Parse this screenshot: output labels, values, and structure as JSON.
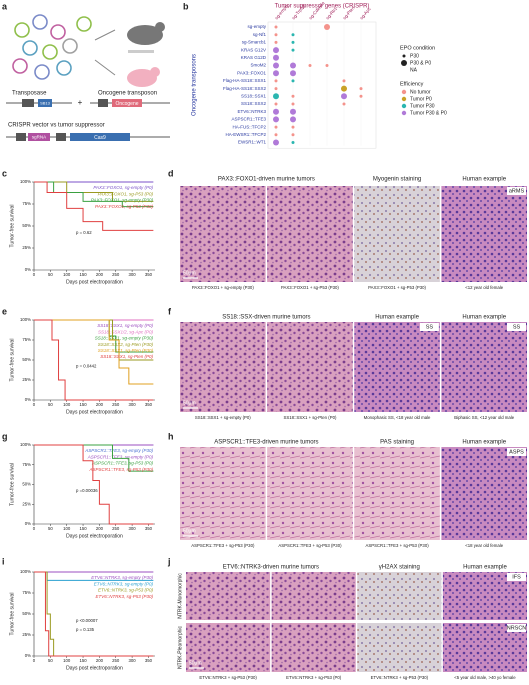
{
  "panel_labels": [
    "a",
    "b",
    "c",
    "d",
    "e",
    "f",
    "g",
    "h",
    "i",
    "j"
  ],
  "diagram_a": {
    "transposase": "Transposase",
    "oncogene_transposon": "Oncogene transposon",
    "crispr": "CRISPR vector vs tumor suppressor",
    "plus": "+",
    "parts": [
      "SB13",
      "Oncogene",
      "sgRNA",
      "Cas9"
    ]
  },
  "dotplot": {
    "title": "Tumor suppressor genes (CRISPR)",
    "ylabel": "Oncogene transposons",
    "columns": [
      "sg-empty",
      "sg-Trp53",
      "sg-Cdkn2a",
      "sg-Rb1",
      "sg-Pten",
      "sg-Apc"
    ],
    "rows": [
      {
        "label": "sg-empty",
        "cells": [
          {
            "epo": "P30",
            "eff": "No tumor"
          },
          null,
          null,
          {
            "epo": "P30 & P0",
            "eff": "No tumor"
          },
          null,
          null
        ]
      },
      {
        "label": "sg-Nf1",
        "cells": [
          {
            "epo": "P30",
            "eff": "No tumor"
          },
          {
            "epo": "P30",
            "eff": "Tumor P30"
          },
          null,
          null,
          null,
          null
        ]
      },
      {
        "label": "sg-Smarcb1",
        "cells": [
          {
            "epo": "P30",
            "eff": "No tumor"
          },
          {
            "epo": "P30",
            "eff": "Tumor P30"
          },
          null,
          null,
          null,
          null
        ]
      },
      {
        "label": "KRAS G12V",
        "cells": [
          {
            "epo": "P30 & P0",
            "eff": "Tumor P30 & P0"
          },
          {
            "epo": "P30",
            "eff": "Tumor P30"
          },
          null,
          null,
          null,
          null
        ]
      },
      {
        "label": "KRAS G12D",
        "cells": [
          {
            "epo": "P30 & P0",
            "eff": "Tumor P30 & P0"
          },
          null,
          null,
          null,
          null,
          null
        ]
      },
      {
        "label": "SmoM2",
        "cells": [
          {
            "epo": "P30 & P0",
            "eff": "Tumor P30 & P0"
          },
          {
            "epo": "P30 & P0",
            "eff": "Tumor P30 & P0"
          },
          {
            "epo": "P30",
            "eff": "No tumor"
          },
          {
            "epo": "P30",
            "eff": "No tumor"
          },
          null,
          null
        ]
      },
      {
        "label": "PAX3::FOXO1",
        "cells": [
          {
            "epo": "P30 & P0",
            "eff": "Tumor P30 & P0"
          },
          {
            "epo": "P30 & P0",
            "eff": "Tumor P30 & P0"
          },
          null,
          null,
          null,
          null
        ]
      },
      {
        "label": "Flag-HA-SS18::SSX1",
        "cells": [
          {
            "epo": "P30",
            "eff": "No tumor"
          },
          {
            "epo": "P30",
            "eff": "Tumor P30"
          },
          null,
          null,
          {
            "epo": "P30",
            "eff": "No tumor"
          },
          null
        ]
      },
      {
        "label": "Flag-HA-SS18::SSX2",
        "cells": [
          {
            "epo": "P30",
            "eff": "No tumor"
          },
          null,
          null,
          null,
          {
            "epo": "P30 & P0",
            "eff": "Tumor P0"
          },
          {
            "epo": "P30",
            "eff": "No tumor"
          }
        ]
      },
      {
        "label": "SS18::SSX1",
        "cells": [
          {
            "epo": "P30 & P0",
            "eff": "Tumor P30"
          },
          {
            "epo": "P30",
            "eff": "No tumor"
          },
          null,
          null,
          {
            "epo": "P30 & P0",
            "eff": "Tumor P30 & P0"
          },
          {
            "epo": "P30",
            "eff": "No tumor"
          }
        ]
      },
      {
        "label": "SS18::SSX2",
        "cells": [
          {
            "epo": "P30",
            "eff": "No tumor"
          },
          {
            "epo": "P30",
            "eff": "No tumor"
          },
          null,
          null,
          {
            "epo": "P30",
            "eff": "No tumor"
          },
          null
        ]
      },
      {
        "label": "ETV6::NTRK3",
        "cells": [
          {
            "epo": "P30 & P0",
            "eff": "Tumor P30 & P0"
          },
          {
            "epo": "P30 & P0",
            "eff": "Tumor P30 & P0"
          },
          null,
          null,
          null,
          null
        ]
      },
      {
        "label": "ASPSCR1::TFE3",
        "cells": [
          {
            "epo": "P30 & P0",
            "eff": "Tumor P30 & P0"
          },
          {
            "epo": "P30 & P0",
            "eff": "Tumor P30 & P0"
          },
          null,
          null,
          null,
          null
        ]
      },
      {
        "label": "HA-FUS::TFCP2",
        "cells": [
          {
            "epo": "P30",
            "eff": "No tumor"
          },
          {
            "epo": "P30",
            "eff": "No tumor"
          },
          null,
          null,
          null,
          null
        ]
      },
      {
        "label": "HA-EWSR1::TFCP2",
        "cells": [
          {
            "epo": "P30",
            "eff": "No tumor"
          },
          {
            "epo": "P30",
            "eff": "No tumor"
          },
          null,
          null,
          null,
          null
        ]
      },
      {
        "label": "EWSR1::WT1",
        "cells": [
          {
            "epo": "P30 & P0",
            "eff": "Tumor P30 & P0"
          },
          {
            "epo": "P30",
            "eff": "Tumor P30"
          },
          null,
          null,
          null,
          null
        ]
      }
    ],
    "epo_title": "EPO condition",
    "epo": [
      "P30",
      "P30 & P0",
      "NA"
    ],
    "eff_title": "Efficiency",
    "eff": [
      {
        "label": "No tumor",
        "color": "#f4938c"
      },
      {
        "label": "Tumor P0",
        "color": "#c9a227"
      },
      {
        "label": "Tumor P30",
        "color": "#2bb6b0"
      },
      {
        "label": "Tumor P30 & P0",
        "color": "#b07ad8"
      }
    ]
  },
  "chart_data": [
    {
      "type": "line",
      "ylabel": "Tumor-free survival",
      "xlabel": "Days post electroporation",
      "xlim": [
        0,
        370
      ],
      "ylim": [
        0,
        100
      ],
      "xticks": [
        0,
        50,
        100,
        150,
        200,
        250,
        300,
        350
      ],
      "yticks": [
        {
          "value": 0,
          "label": "0%"
        },
        {
          "value": 25,
          "label": "25%"
        },
        {
          "value": 50,
          "label": "50%"
        },
        {
          "value": 75,
          "label": "75%"
        },
        {
          "value": 100,
          "label": "100%"
        }
      ],
      "annotations": [
        "p = 0.62"
      ],
      "series": [
        {
          "name": "PAX3::FOXO1, sg-empty (P0)",
          "color": "#7b52c8",
          "x": [
            0,
            365
          ],
          "values": [
            100,
            100
          ]
        },
        {
          "name": "PAX3::FOXO1, sg-P53 (P0)",
          "color": "#9a9a20",
          "x": [
            0,
            100,
            100,
            240,
            240,
            365
          ],
          "values": [
            100,
            100,
            88,
            88,
            78,
            78
          ]
        },
        {
          "name": "PAX3::FOXO1, sg-empty (P30)",
          "color": "#3aa040",
          "x": [
            0,
            60,
            60,
            150,
            150,
            270,
            270,
            365
          ],
          "values": [
            100,
            100,
            88,
            88,
            78,
            78,
            72,
            72
          ]
        },
        {
          "name": "PAX3::FOXO1, sg-P53 (P30)",
          "color": "#e04040",
          "x": [
            0,
            40,
            40,
            100,
            100,
            150,
            150,
            210,
            210,
            365
          ],
          "values": [
            100,
            100,
            88,
            88,
            70,
            70,
            55,
            55,
            45,
            45
          ]
        }
      ]
    },
    {
      "type": "line",
      "ylabel": "Tumor-free survival",
      "xlabel": "Days post electroporation",
      "xlim": [
        0,
        370
      ],
      "ylim": [
        0,
        100
      ],
      "xticks": [
        0,
        50,
        100,
        150,
        200,
        250,
        300,
        350
      ],
      "yticks": [
        {
          "value": 0,
          "label": "0%"
        },
        {
          "value": 25,
          "label": "25%"
        },
        {
          "value": 50,
          "label": "50%"
        },
        {
          "value": 75,
          "label": "75%"
        },
        {
          "value": 100,
          "label": "100%"
        }
      ],
      "annotations": [
        "p = 0.0442"
      ],
      "series": [
        {
          "name": "SS18::SSX1, sg-empty (P0)",
          "color": "#9b4fc0",
          "x": [
            0,
            365
          ],
          "values": [
            100,
            100
          ]
        },
        {
          "name": "SS18::SSX1/2, sg-Apc (P0)",
          "color": "#e070c0",
          "x": [
            0,
            365
          ],
          "values": [
            100,
            100
          ]
        },
        {
          "name": "SS18::SSX1, sg-empty (P30)",
          "color": "#3aa040",
          "x": [
            0,
            230,
            230,
            250,
            250,
            365
          ],
          "values": [
            100,
            100,
            80,
            80,
            60,
            60
          ]
        },
        {
          "name": "SS18::SSX2, sg-Pten (P30)",
          "color": "#9a9a20",
          "x": [
            0,
            240,
            240,
            260,
            260,
            365
          ],
          "values": [
            100,
            100,
            75,
            75,
            50,
            50
          ]
        },
        {
          "name": "SS18::SSX1, sg-Pten (P30)",
          "color": "#e0a020",
          "x": [
            0,
            230,
            230,
            260,
            260,
            290,
            290,
            365
          ],
          "values": [
            100,
            100,
            75,
            75,
            40,
            40,
            20,
            20
          ]
        },
        {
          "name": "SS18::SSX1, sg-Pten (P0)",
          "color": "#e04040",
          "x": [
            0,
            55,
            55,
            75,
            75,
            95,
            95,
            365
          ],
          "values": [
            100,
            100,
            75,
            75,
            25,
            25,
            0,
            0
          ]
        }
      ]
    },
    {
      "type": "line",
      "ylabel": "Tumor-free survival",
      "xlabel": "Days post electroporation",
      "xlim": [
        0,
        370
      ],
      "ylim": [
        0,
        100
      ],
      "xticks": [
        0,
        50,
        100,
        150,
        200,
        250,
        300,
        350
      ],
      "yticks": [
        {
          "value": 0,
          "label": "0%"
        },
        {
          "value": 25,
          "label": "25%"
        },
        {
          "value": 50,
          "label": "50%"
        },
        {
          "value": 75,
          "label": "75%"
        },
        {
          "value": 100,
          "label": "100%"
        }
      ],
      "annotations": [
        "p =0.00036"
      ],
      "series": [
        {
          "name": "ASPSCR1::TFE3, sg-empty (P30)",
          "color": "#4a6fd0",
          "x": [
            0,
            365
          ],
          "values": [
            100,
            100
          ]
        },
        {
          "name": "ASPSCR1::TFE3, sg-empty (P0)",
          "color": "#9b4fc0",
          "x": [
            0,
            365
          ],
          "values": [
            100,
            100
          ]
        },
        {
          "name": "ASPSCR1::TFE3, sg-P53 (P0)",
          "color": "#3aa040",
          "x": [
            0,
            240,
            240,
            290,
            290,
            365
          ],
          "values": [
            100,
            100,
            83,
            83,
            67,
            67
          ]
        },
        {
          "name": "ASPSCR1::TFE3, sg-P53 (P30)",
          "color": "#e04040",
          "x": [
            0,
            150,
            150,
            180,
            180,
            200,
            200,
            230,
            230,
            365
          ],
          "values": [
            100,
            100,
            80,
            80,
            55,
            55,
            25,
            25,
            0,
            0
          ]
        }
      ]
    },
    {
      "type": "line",
      "ylabel": "Tumor-free survival",
      "xlabel": "Days post electroporation",
      "xlim": [
        0,
        370
      ],
      "ylim": [
        0,
        100
      ],
      "xticks": [
        0,
        50,
        100,
        150,
        200,
        250,
        300,
        350
      ],
      "yticks": [
        {
          "value": 0,
          "label": "0%"
        },
        {
          "value": 25,
          "label": "25%"
        },
        {
          "value": 50,
          "label": "50%"
        },
        {
          "value": 75,
          "label": "75%"
        },
        {
          "value": 100,
          "label": "100%"
        }
      ],
      "annotations": [
        "p <0.00007",
        "p = 0.135"
      ],
      "series": [
        {
          "name": "ETV6::NTRK3, sg-empty (P30)",
          "color": "#9b4fc0",
          "x": [
            0,
            365
          ],
          "values": [
            100,
            100
          ]
        },
        {
          "name": "ETV6::NTRK3, sg-empty (P0)",
          "color": "#2aa0d0",
          "x": [
            0,
            40,
            40,
            365
          ],
          "values": [
            100,
            100,
            90,
            90
          ]
        },
        {
          "name": "ETV6::NTRK3, sg-P53 (P0)",
          "color": "#9a9a20",
          "x": [
            0,
            40,
            40,
            50,
            50,
            60,
            60,
            365
          ],
          "values": [
            100,
            100,
            50,
            50,
            20,
            20,
            0,
            0
          ]
        },
        {
          "name": "ETV6::NTRK3, sg-P53 (P30)",
          "color": "#e04040",
          "x": [
            0,
            35,
            35,
            45,
            45,
            365
          ],
          "values": [
            100,
            100,
            30,
            30,
            0,
            0
          ]
        }
      ]
    }
  ],
  "histology": [
    {
      "headers": [
        "PAX3::FOXO1-driven  murine tumors",
        "Myogenin staining",
        "Human example"
      ],
      "tags": [
        "aRMS"
      ],
      "scale": "50μm",
      "captions": [
        "PAX3::FOXO1 + sg-empty (P30)",
        "PAX3::FOXO1 + sg-P53 (P30)",
        "PAX3::FOXO1 + sg-P53 (P30)",
        "<12 year old female"
      ]
    },
    {
      "headers": [
        "SS18::SSX-driven  murine tumors",
        "Human example",
        "Human example"
      ],
      "tags": [
        "SS",
        "SS"
      ],
      "scale": "50μm",
      "captions": [
        "SS18::SSX1 + sg-empty (P0)",
        "SS18::SSX1 + sg-Pten (P0)",
        "Monophasic SS, <18 year old male",
        "Biphasic SS, <12 year old male"
      ]
    },
    {
      "headers": [
        "ASPSCR1::TFE3-driven  murine tumors",
        "PAS staining",
        "Human example"
      ],
      "tags": [
        "ASPS"
      ],
      "scale": "50μm",
      "captions": [
        "ASPSCR1::TFE3 + sg-P53 (P30)",
        "ASPSCR1::TFE3 + sg-P53 (P30)",
        "ASPSCR1::TFE3 + sg-P53 (P30)",
        "<18 year old female"
      ]
    },
    {
      "headers": [
        "ETV6::NTRK3-driven  murine tumors",
        "γH2AX staining",
        "Human example"
      ],
      "tags": [
        "IFS",
        "NRSCN"
      ],
      "scale": "50μm",
      "row_labels": [
        "NTRK-Monomorphic",
        "NTRK-Pleomorphic"
      ],
      "captions": [
        "ETV6::NTRK3 + sg-P53 (P30)",
        "ETV6::NTRK3 + sg-P53 (P0)",
        "ETV6::NTRK3 + sg-P53 (P30)",
        "<5 year old male, >40 yo female"
      ]
    }
  ]
}
